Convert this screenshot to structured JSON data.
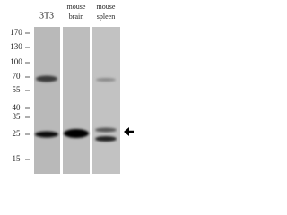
{
  "lanes": [
    {
      "label": [
        "3T3"
      ]
    },
    {
      "label": [
        "mouse",
        "brain"
      ]
    },
    {
      "label": [
        "mouse",
        "spleen"
      ]
    }
  ],
  "markers": [
    "170",
    "130",
    "100",
    "70",
    "55",
    "40",
    "35",
    "25",
    "15"
  ]
}
